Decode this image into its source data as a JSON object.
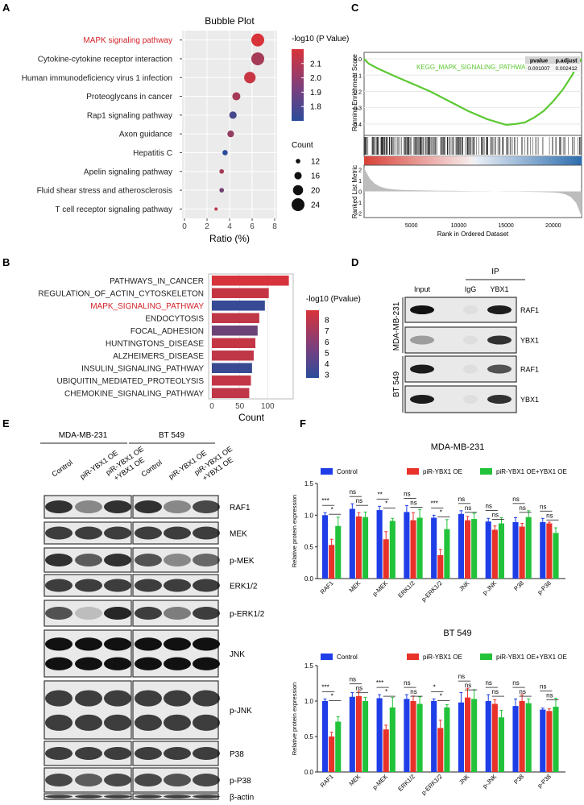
{
  "panels": {
    "A": "A",
    "B": "B",
    "C": "C",
    "D": "D",
    "E": "E",
    "F": "F"
  },
  "panelA": {
    "chart_data": {
      "type": "scatter",
      "title": "Bubble Plot",
      "xlabel": "Ratio (%)",
      "xlim": [
        0,
        8
      ],
      "xticks": [
        0,
        2,
        4,
        6,
        8
      ],
      "highlight": "MAPK signaling pathway",
      "points": [
        {
          "term": "MAPK signaling pathway",
          "ratio": 6.5,
          "count": 24,
          "logp": 2.2
        },
        {
          "term": "Cytokine-cytokine receptor interaction",
          "ratio": 6.5,
          "count": 24,
          "logp": 2.05
        },
        {
          "term": "Human immunodeficiency virus 1 infection",
          "ratio": 5.8,
          "count": 22,
          "logp": 2.15
        },
        {
          "term": "Proteoglycans in cancer",
          "ratio": 4.6,
          "count": 17,
          "logp": 2.05
        },
        {
          "term": "Rap1 signaling pathway",
          "ratio": 4.3,
          "count": 16,
          "logp": 1.78
        },
        {
          "term": "Axon guidance",
          "ratio": 4.1,
          "count": 15,
          "logp": 2.0
        },
        {
          "term": "Hepatitis C",
          "ratio": 3.6,
          "count": 13,
          "logp": 1.7
        },
        {
          "term": "Apelin signaling pathway",
          "ratio": 3.3,
          "count": 12,
          "logp": 2.05
        },
        {
          "term": "Fluid shear stress and atherosclerosis",
          "ratio": 3.3,
          "count": 12,
          "logp": 1.9
        },
        {
          "term": "T cell receptor signaling pathway",
          "ratio": 2.8,
          "count": 10,
          "logp": 2.1
        }
      ],
      "color_legend": {
        "title": "-log10 (P Value)",
        "ticks": [
          2.1,
          2.0,
          1.9,
          1.8
        ],
        "min": 1.7,
        "max": 2.2,
        "low_color": "#2b4c9b",
        "high_color": "#d9333a"
      },
      "size_legend": {
        "title": "Count",
        "values": [
          12,
          16,
          20,
          24
        ]
      }
    }
  },
  "panelB": {
    "chart_data": {
      "type": "bar",
      "orientation": "horizontal",
      "xlabel": "Count",
      "xlim": [
        0,
        140
      ],
      "xticks": [
        0,
        50,
        100
      ],
      "highlight": "MAPK_SIGNALING_PATHWAY",
      "bars": [
        {
          "term": "PATHWAYS_IN_CANCER",
          "count": 138,
          "logp": 8.8
        },
        {
          "term": "REGULATION_OF_ACTIN_CYTOSKELETON",
          "count": 102,
          "logp": 8.2
        },
        {
          "term": "MAPK_SIGNALING_PATHWAY",
          "count": 95,
          "logp": 3.1
        },
        {
          "term": "ENDOCYTOSIS",
          "count": 85,
          "logp": 8.0
        },
        {
          "term": "FOCAL_ADHESION",
          "count": 82,
          "logp": 5.0
        },
        {
          "term": "HUNTINGTONS_DISEASE",
          "count": 78,
          "logp": 8.2
        },
        {
          "term": "ALZHEIMERS_DISEASE",
          "count": 75,
          "logp": 8.0
        },
        {
          "term": "INSULIN_SIGNALING_PATHWAY",
          "count": 72,
          "logp": 3.2
        },
        {
          "term": "UBIQUITIN_MEDIATED_PROTEOLYSIS",
          "count": 70,
          "logp": 8.1
        },
        {
          "term": "CHEMOKINE_SIGNALING_PATHWAY",
          "count": 67,
          "logp": 8.0
        }
      ],
      "color_legend": {
        "title": "-log10 (Pvalue)",
        "ticks": [
          8,
          7,
          6,
          5,
          4,
          3
        ],
        "min": 2.7,
        "max": 8.9,
        "low_color": "#2b4c9b",
        "high_color": "#d9333a"
      }
    }
  },
  "panelC": {
    "chart_data": {
      "type": "line",
      "ylabel_top": "Running Enrichment Score",
      "ylabel_bottom": "Ranked List Metric",
      "xlabel": "Rank in Ordered Dataset",
      "gene_set": "KEGG_MAPK_SIGNALING_PATHWAY",
      "table_headers": [
        "pvalue",
        "p.adjust"
      ],
      "table_values": [
        "0.001007",
        "0.002412"
      ],
      "xticks": [
        5000,
        10000,
        15000,
        20000
      ],
      "xlim": [
        0,
        23000
      ],
      "yticks_top": [
        0.0,
        -0.1,
        -0.2,
        -0.3,
        -0.4
      ],
      "ylim_top": [
        -0.45,
        0.02
      ],
      "yticks_bottom": [
        2,
        1,
        0,
        -1,
        -2
      ],
      "es_curve": [
        [
          0,
          0
        ],
        [
          500,
          -0.03
        ],
        [
          1500,
          -0.06
        ],
        [
          3000,
          -0.1
        ],
        [
          5000,
          -0.15
        ],
        [
          7000,
          -0.2
        ],
        [
          9000,
          -0.26
        ],
        [
          11000,
          -0.32
        ],
        [
          13000,
          -0.37
        ],
        [
          15000,
          -0.405
        ],
        [
          16000,
          -0.4
        ],
        [
          17000,
          -0.39
        ],
        [
          18000,
          -0.36
        ],
        [
          19000,
          -0.32
        ],
        [
          20000,
          -0.26
        ],
        [
          21000,
          -0.19
        ],
        [
          22000,
          -0.1
        ],
        [
          22500,
          -0.04
        ],
        [
          23000,
          0
        ]
      ]
    }
  },
  "panelD": {
    "ip_label": "IP",
    "columns": [
      "Input",
      "IgG",
      "YBX1"
    ],
    "cell_lines": [
      "MDA-MB-231",
      "BT 549"
    ],
    "bands": [
      "RAF1",
      "YBX1",
      "RAF1",
      "YBX1"
    ]
  },
  "panelE": {
    "cell_lines": [
      "MDA-MB-231",
      "BT 549"
    ],
    "conditions": [
      "Control",
      "piR-YBX1 OE",
      "piR-YBX1 OE +YBX1 OE"
    ],
    "cond3_line1": "piR-YBX1 OE",
    "cond3_line2": "+YBX1 OE",
    "bands": [
      "RAF1",
      "MEK",
      "p-MEK",
      "ERK1/2",
      "p-ERK1/2",
      "JNK",
      "p-JNK",
      "P38",
      "p-P38",
      "β-actin"
    ]
  },
  "panelF": {
    "chart_data": [
      {
        "type": "bar",
        "title": "MDA-MB-231",
        "ylabel": "Relative protein expression",
        "ylim": [
          0,
          1.5
        ],
        "yticks": [
          0.0,
          0.5,
          1.0,
          1.5
        ],
        "categories": [
          "RAF1",
          "MEK",
          "p-MEK",
          "ERK1/2",
          "p-ERK1/2",
          "JNK",
          "p-JNK",
          "P38",
          "p-P38"
        ],
        "series": [
          {
            "name": "Control",
            "color": "#1f3ee8",
            "values": [
              1.0,
              1.1,
              1.08,
              1.05,
              0.96,
              1.02,
              0.9,
              0.89,
              0.89
            ],
            "errors": [
              0.04,
              0.08,
              0.06,
              0.1,
              0.04,
              0.05,
              0.05,
              0.07,
              0.06
            ]
          },
          {
            "name": "piR-YBX1 OE",
            "color": "#e8322a",
            "values": [
              0.53,
              0.98,
              0.62,
              0.92,
              0.37,
              0.92,
              0.77,
              0.82,
              0.87
            ],
            "errors": [
              0.09,
              0.06,
              0.12,
              0.12,
              0.09,
              0.06,
              0.06,
              0.05,
              0.02
            ]
          },
          {
            "name": "piR-YBX1 OE+YBX1 OE",
            "color": "#22c33a",
            "values": [
              0.83,
              0.97,
              0.91,
              0.96,
              0.78,
              0.94,
              0.87,
              0.97,
              0.72
            ],
            "errors": [
              0.14,
              0.08,
              0.04,
              0.13,
              0.15,
              0.09,
              0.09,
              0.1,
              0.08
            ]
          }
        ],
        "significance": [
          {
            "top": "***",
            "bottom": "*"
          },
          {
            "top": "ns",
            "bottom": "ns"
          },
          {
            "top": "**",
            "bottom": "*"
          },
          {
            "top": "ns",
            "bottom": "ns"
          },
          {
            "top": "***",
            "bottom": "*"
          },
          {
            "top": "ns",
            "bottom": "ns"
          },
          {
            "top": "ns",
            "bottom": "ns"
          },
          {
            "top": "ns",
            "bottom": "ns"
          },
          {
            "top": "ns",
            "bottom": "ns"
          }
        ]
      },
      {
        "type": "bar",
        "title": "BT 549",
        "ylabel": "Relative protein expression",
        "ylim": [
          0,
          1.5
        ],
        "yticks": [
          0.0,
          0.5,
          1.0,
          1.5
        ],
        "categories": [
          "RAF1",
          "MEK",
          "p-MEK",
          "ERK1/2",
          "p-ERK1/2",
          "JNK",
          "p-JNK",
          "P38",
          "p-P38"
        ],
        "series": [
          {
            "name": "Control",
            "color": "#1f3ee8",
            "values": [
              1.0,
              1.06,
              1.04,
              1.03,
              1.0,
              0.98,
              1.0,
              0.93,
              0.88
            ],
            "errors": [
              0.03,
              0.06,
              0.05,
              0.06,
              0.03,
              0.14,
              0.09,
              0.1,
              0.02
            ]
          },
          {
            "name": "piR-YBX1 OE",
            "color": "#e8322a",
            "values": [
              0.5,
              1.07,
              0.6,
              1.0,
              0.62,
              1.05,
              0.96,
              1.0,
              0.86
            ],
            "errors": [
              0.06,
              0.07,
              0.06,
              0.07,
              0.11,
              0.13,
              0.06,
              0.09,
              0.03
            ]
          },
          {
            "name": "piR-YBX1 OE+YBX1 OE",
            "color": "#22c33a",
            "values": [
              0.71,
              1.0,
              0.91,
              0.96,
              0.91,
              1.03,
              0.77,
              0.97,
              0.92
            ],
            "errors": [
              0.07,
              0.05,
              0.14,
              0.1,
              0.04,
              0.13,
              0.1,
              0.06,
              0.12
            ]
          }
        ],
        "significance": [
          {
            "top": "***",
            "bottom": "*"
          },
          {
            "top": "ns",
            "bottom": "ns"
          },
          {
            "top": "***",
            "bottom": "*"
          },
          {
            "top": "ns",
            "bottom": "ns"
          },
          {
            "top": "*",
            "bottom": "*"
          },
          {
            "top": "ns",
            "bottom": "ns"
          },
          {
            "top": "ns",
            "bottom": "ns"
          },
          {
            "top": "ns",
            "bottom": "ns"
          },
          {
            "top": "ns",
            "bottom": "ns"
          }
        ]
      }
    ]
  }
}
